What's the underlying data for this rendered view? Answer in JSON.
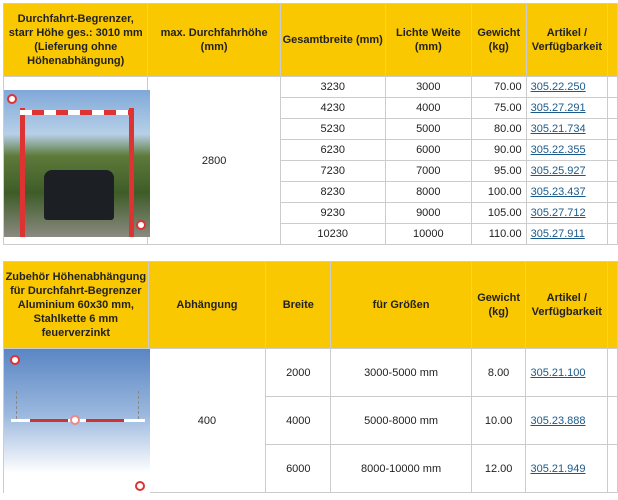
{
  "table1": {
    "headers": [
      "Durchfahrt-Begrenzer, starr Höhe ges.: 3010 mm (Lieferung ohne Höhenabhängung)",
      "max. Durchfahrhöhe (mm)",
      "Gesamtbreite (mm)",
      "Lichte Weite (mm)",
      "Gewicht (kg)",
      "Artikel / Verfügbarkeit"
    ],
    "height": "2800",
    "rows": [
      [
        "3230",
        "3000",
        "70.00",
        "305.22.250"
      ],
      [
        "4230",
        "4000",
        "75.00",
        "305.27.291"
      ],
      [
        "5230",
        "5000",
        "80.00",
        "305.21.734"
      ],
      [
        "6230",
        "6000",
        "90.00",
        "305.22.355"
      ],
      [
        "7230",
        "7000",
        "95.00",
        "305.25.927"
      ],
      [
        "8230",
        "8000",
        "100.00",
        "305.23.437"
      ],
      [
        "9230",
        "9000",
        "105.00",
        "305.27.712"
      ],
      [
        "10230",
        "10000",
        "110.00",
        "305.27.911"
      ]
    ]
  },
  "table2": {
    "headers": [
      "Zubehör Höhenabhängung für Durchfahrt-Begrenzer Aluminium 60x30 mm, Stahlkette 6 mm feuerverzinkt",
      "Abhängung",
      "Breite",
      "für Größen",
      "Gewicht (kg)",
      "Artikel / Verfügbarkeit"
    ],
    "abhaengung": "400",
    "rows": [
      [
        "2000",
        "3000-5000 mm",
        "8.00",
        "305.21.100"
      ],
      [
        "4000",
        "5000-8000 mm",
        "10.00",
        "305.23.888"
      ],
      [
        "6000",
        "8000-10000 mm",
        "12.00",
        "305.21.949"
      ]
    ]
  },
  "colors": {
    "header": "#fac800",
    "link": "#1a5a8a"
  }
}
